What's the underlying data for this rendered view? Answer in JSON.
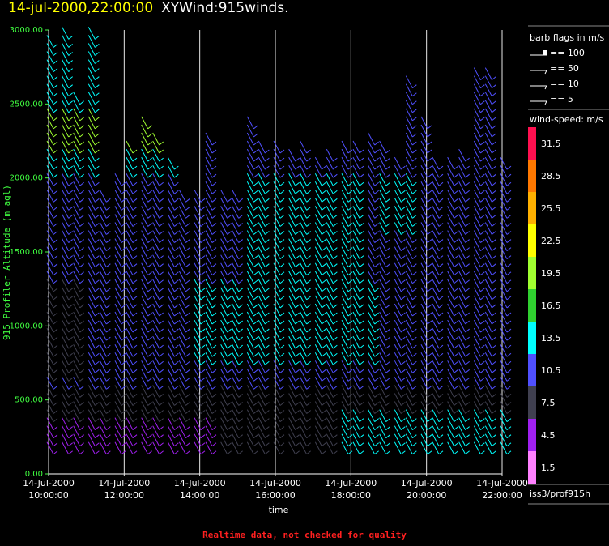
{
  "title": {
    "date": "14-jul-2000,22:00:00",
    "name": "XYWind:915winds."
  },
  "footer": "Realtime data, not checked for quality",
  "source_label": "iss3/prof915h",
  "colors": {
    "background": "#000000",
    "grid": "#ffffff",
    "y_axis_text": "#40ff40",
    "title_date": "#ffff00",
    "footer": "#ff2020"
  },
  "chart_data": {
    "type": "wind-barb time-height plot",
    "xlabel": "time",
    "ylabel": "915 Profiler Altitude (m agl)",
    "x_ticks": [
      {
        "line1": "14-Jul-2000",
        "line2": "10:00:00"
      },
      {
        "line1": "14-Jul-2000",
        "line2": "12:00:00"
      },
      {
        "line1": "14-Jul-2000",
        "line2": "14:00:00"
      },
      {
        "line1": "14-Jul-2000",
        "line2": "16:00:00"
      },
      {
        "line1": "14-Jul-2000",
        "line2": "18:00:00"
      },
      {
        "line1": "14-Jul-2000",
        "line2": "20:00:00"
      },
      {
        "line1": "14-Jul-2000",
        "line2": "22:00:00"
      }
    ],
    "x_range_hours": [
      10,
      22
    ],
    "y_ticks": [
      "0.00",
      "500.00",
      "1000.00",
      "1500.00",
      "2000.00",
      "2500.00",
      "3000.00"
    ],
    "y_range": [
      0,
      3000
    ],
    "grid": "vertical lines at each 2-hour tick",
    "barb_legend": {
      "title": "barb flags in m/s",
      "items": [
        "== 100",
        "== 50",
        "== 10",
        "== 5"
      ]
    },
    "color_scale": {
      "title": "wind-speed: m/s",
      "levels": [
        {
          "label": "31.5",
          "color": "#ff1050"
        },
        {
          "label": "28.5",
          "color": "#ff7800"
        },
        {
          "label": "25.5",
          "color": "#ffb000"
        },
        {
          "label": "22.5",
          "color": "#ffff00"
        },
        {
          "label": "19.5",
          "color": "#a0ff30"
        },
        {
          "label": "16.5",
          "color": "#30d030"
        },
        {
          "label": "13.5",
          "color": "#00ffff"
        },
        {
          "label": "10.5",
          "color": "#5050ff"
        },
        {
          "label": "7.5",
          "color": "#404050"
        },
        {
          "label": "4.5",
          "color": "#a020f0"
        },
        {
          "label": "1.5",
          "color": "#ff80ff"
        }
      ]
    },
    "profile_times_hours": [
      10.0,
      10.4,
      10.7,
      11.1,
      11.4,
      11.8,
      12.1,
      12.5,
      12.8,
      13.2,
      13.5,
      13.9,
      14.2,
      14.6,
      14.9,
      15.3,
      15.6,
      16.0,
      16.4,
      16.7,
      17.1,
      17.4,
      17.8,
      18.1,
      18.5,
      18.8,
      19.2,
      19.5,
      19.9,
      20.2,
      20.6,
      20.9,
      21.3,
      21.6,
      22.0
    ],
    "profile_tops_m": [
      2950,
      2980,
      2560,
      2980,
      1900,
      2000,
      2200,
      2380,
      2300,
      2100,
      1900,
      1900,
      2300,
      1900,
      1900,
      2400,
      2200,
      2200,
      2150,
      2200,
      2100,
      2150,
      2200,
      2200,
      2300,
      2200,
      2100,
      2650,
      2400,
      2100,
      2100,
      2150,
      2700,
      2700,
      2100
    ],
    "speed_regimes": [
      {
        "alt_range_m": [
          0,
          600
        ],
        "speed_ms": 7.5,
        "note": "dark grey; purple 3-6 m/s near 10-14h"
      },
      {
        "alt_range_m": [
          600,
          1300
        ],
        "speed_ms": 10.5,
        "note": "blue; cyan 12-15 m/s near 14-18h"
      },
      {
        "alt_range_m": [
          1300,
          2000
        ],
        "speed_ms": 11,
        "note": "blue with cyan patches 16-18h"
      },
      {
        "alt_range_m": [
          2000,
          3000
        ],
        "speed_ms": 14,
        "note": "cyan/green; yellow-green near 2200-2300 m at 10-13h"
      }
    ]
  }
}
